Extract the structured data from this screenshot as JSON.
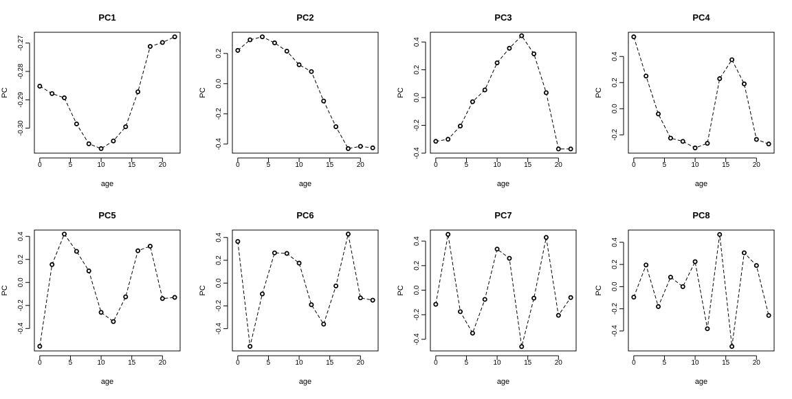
{
  "figure": {
    "background": "#ffffff",
    "line_color": "#000000",
    "panels": [
      {
        "title": "PC1"
      },
      {
        "title": "PC2"
      },
      {
        "title": "PC3"
      },
      {
        "title": "PC4"
      },
      {
        "title": "PC5"
      },
      {
        "title": "PC6"
      },
      {
        "title": "PC7"
      },
      {
        "title": "PC8"
      }
    ]
  },
  "chart_data": [
    {
      "type": "line",
      "title": "PC1",
      "xlabel": "age",
      "ylabel": "PC",
      "line_style": "dashed",
      "marker": "open-circle",
      "x": [
        0,
        2,
        4,
        6,
        8,
        10,
        12,
        14,
        16,
        18,
        20,
        22
      ],
      "y": [
        -0.2852,
        -0.2878,
        -0.2893,
        -0.2985,
        -0.3055,
        -0.3072,
        -0.3045,
        -0.2995,
        -0.2872,
        -0.2712,
        -0.2698,
        -0.2678
      ],
      "xlim": [
        -0.88,
        22.88
      ],
      "ylim": [
        -0.3088,
        -0.2662
      ],
      "xticks": [
        0,
        5,
        10,
        15,
        20
      ],
      "xtick_labels": [
        "0",
        "5",
        "10",
        "15",
        "20"
      ],
      "yticks": [
        -0.3,
        -0.29,
        -0.28,
        -0.27
      ],
      "ytick_labels": [
        "-0.30",
        "-0.29",
        "-0.28",
        "-0.27"
      ]
    },
    {
      "type": "line",
      "title": "PC2",
      "xlabel": "age",
      "ylabel": "PC",
      "line_style": "dashed",
      "marker": "open-circle",
      "x": [
        0,
        2,
        4,
        6,
        8,
        10,
        12,
        14,
        16,
        18,
        20,
        22
      ],
      "y": [
        0.22,
        0.29,
        0.31,
        0.27,
        0.215,
        0.125,
        0.08,
        -0.115,
        -0.285,
        -0.43,
        -0.415,
        -0.425
      ],
      "xlim": [
        -0.88,
        22.88
      ],
      "ylim": [
        -0.46,
        0.34
      ],
      "xticks": [
        0,
        5,
        10,
        15,
        20
      ],
      "xtick_labels": [
        "0",
        "5",
        "10",
        "15",
        "20"
      ],
      "yticks": [
        -0.4,
        -0.2,
        0.0,
        0.2
      ],
      "ytick_labels": [
        "-0.4",
        "-0.2",
        "0.0",
        "0.2"
      ]
    },
    {
      "type": "line",
      "title": "PC3",
      "xlabel": "age",
      "ylabel": "PC",
      "line_style": "dashed",
      "marker": "open-circle",
      "x": [
        0,
        2,
        4,
        6,
        8,
        10,
        12,
        14,
        16,
        18,
        20,
        22
      ],
      "y": [
        -0.315,
        -0.3,
        -0.205,
        -0.03,
        0.055,
        0.25,
        0.355,
        0.445,
        0.315,
        0.035,
        -0.37,
        -0.37
      ],
      "xlim": [
        -0.88,
        22.88
      ],
      "ylim": [
        -0.4,
        0.47
      ],
      "xticks": [
        0,
        5,
        10,
        15,
        20
      ],
      "xtick_labels": [
        "0",
        "5",
        "10",
        "15",
        "20"
      ],
      "yticks": [
        -0.4,
        -0.2,
        0.0,
        0.2,
        0.4
      ],
      "ytick_labels": [
        "-0.4",
        "-0.2",
        "0.0",
        "0.2",
        "0.4"
      ]
    },
    {
      "type": "line",
      "title": "PC4",
      "xlabel": "age",
      "ylabel": "PC",
      "line_style": "dashed",
      "marker": "open-circle",
      "x": [
        0,
        2,
        4,
        6,
        8,
        10,
        12,
        14,
        16,
        18,
        20,
        22
      ],
      "y": [
        0.55,
        0.25,
        -0.04,
        -0.225,
        -0.25,
        -0.3,
        -0.265,
        0.23,
        0.375,
        0.19,
        -0.235,
        -0.27
      ],
      "xlim": [
        -0.88,
        22.88
      ],
      "ylim": [
        -0.34,
        0.585
      ],
      "xticks": [
        0,
        5,
        10,
        15,
        20
      ],
      "xtick_labels": [
        "0",
        "5",
        "10",
        "15",
        "20"
      ],
      "yticks": [
        -0.2,
        0.0,
        0.2,
        0.4
      ],
      "ytick_labels": [
        "-0.2",
        "0.0",
        "0.2",
        "0.4"
      ]
    },
    {
      "type": "line",
      "title": "PC5",
      "xlabel": "age",
      "ylabel": "PC",
      "line_style": "dashed",
      "marker": "open-circle",
      "x": [
        0,
        2,
        4,
        6,
        8,
        10,
        12,
        14,
        16,
        18,
        20,
        22
      ],
      "y": [
        -0.555,
        0.155,
        0.42,
        0.27,
        0.1,
        -0.26,
        -0.34,
        -0.125,
        0.275,
        0.315,
        -0.14,
        -0.13
      ],
      "xlim": [
        -0.88,
        22.88
      ],
      "ylim": [
        -0.595,
        0.455
      ],
      "xticks": [
        0,
        5,
        10,
        15,
        20
      ],
      "xtick_labels": [
        "0",
        "5",
        "10",
        "15",
        "20"
      ],
      "yticks": [
        -0.4,
        -0.2,
        0.0,
        0.2,
        0.4
      ],
      "ytick_labels": [
        "-0.4",
        "-0.2",
        "0.0",
        "0.2",
        "0.4"
      ]
    },
    {
      "type": "line",
      "title": "PC6",
      "xlabel": "age",
      "ylabel": "PC",
      "line_style": "dashed",
      "marker": "open-circle",
      "x": [
        0,
        2,
        4,
        6,
        8,
        10,
        12,
        14,
        16,
        18,
        20,
        22
      ],
      "y": [
        0.365,
        -0.555,
        -0.095,
        0.265,
        0.26,
        0.175,
        -0.19,
        -0.36,
        -0.025,
        0.43,
        -0.13,
        -0.15
      ],
      "xlim": [
        -0.88,
        22.88
      ],
      "ylim": [
        -0.595,
        0.465
      ],
      "xticks": [
        0,
        5,
        10,
        15,
        20
      ],
      "xtick_labels": [
        "0",
        "5",
        "10",
        "15",
        "20"
      ],
      "yticks": [
        -0.4,
        -0.2,
        0.0,
        0.2,
        0.4
      ],
      "ytick_labels": [
        "-0.4",
        "-0.2",
        "0.0",
        "0.2",
        "0.4"
      ]
    },
    {
      "type": "line",
      "title": "PC7",
      "xlabel": "age",
      "ylabel": "PC",
      "line_style": "dashed",
      "marker": "open-circle",
      "x": [
        0,
        2,
        4,
        6,
        8,
        10,
        12,
        14,
        16,
        18,
        20,
        22
      ],
      "y": [
        -0.115,
        0.455,
        -0.175,
        -0.35,
        -0.075,
        0.335,
        0.26,
        -0.46,
        -0.065,
        0.43,
        -0.205,
        -0.06
      ],
      "xlim": [
        -0.88,
        22.88
      ],
      "ylim": [
        -0.495,
        0.49
      ],
      "xticks": [
        0,
        5,
        10,
        15,
        20
      ],
      "xtick_labels": [
        "0",
        "5",
        "10",
        "15",
        "20"
      ],
      "yticks": [
        -0.4,
        -0.2,
        0.0,
        0.2,
        0.4
      ],
      "ytick_labels": [
        "-0.4",
        "-0.2",
        "0.0",
        "0.2",
        "0.4"
      ]
    },
    {
      "type": "line",
      "title": "PC8",
      "xlabel": "age",
      "ylabel": "PC",
      "line_style": "dashed",
      "marker": "open-circle",
      "x": [
        0,
        2,
        4,
        6,
        8,
        10,
        12,
        14,
        16,
        18,
        20,
        22
      ],
      "y": [
        -0.095,
        0.195,
        -0.18,
        0.085,
        0.0,
        0.225,
        -0.38,
        0.47,
        -0.54,
        0.305,
        0.19,
        -0.26
      ],
      "xlim": [
        -0.88,
        22.88
      ],
      "ylim": [
        -0.58,
        0.51
      ],
      "xticks": [
        0,
        5,
        10,
        15,
        20
      ],
      "xtick_labels": [
        "0",
        "5",
        "10",
        "15",
        "20"
      ],
      "yticks": [
        -0.4,
        -0.2,
        0.0,
        0.2,
        0.4
      ],
      "ytick_labels": [
        "-0.4",
        "-0.2",
        "0.0",
        "0.2",
        "0.4"
      ]
    }
  ]
}
